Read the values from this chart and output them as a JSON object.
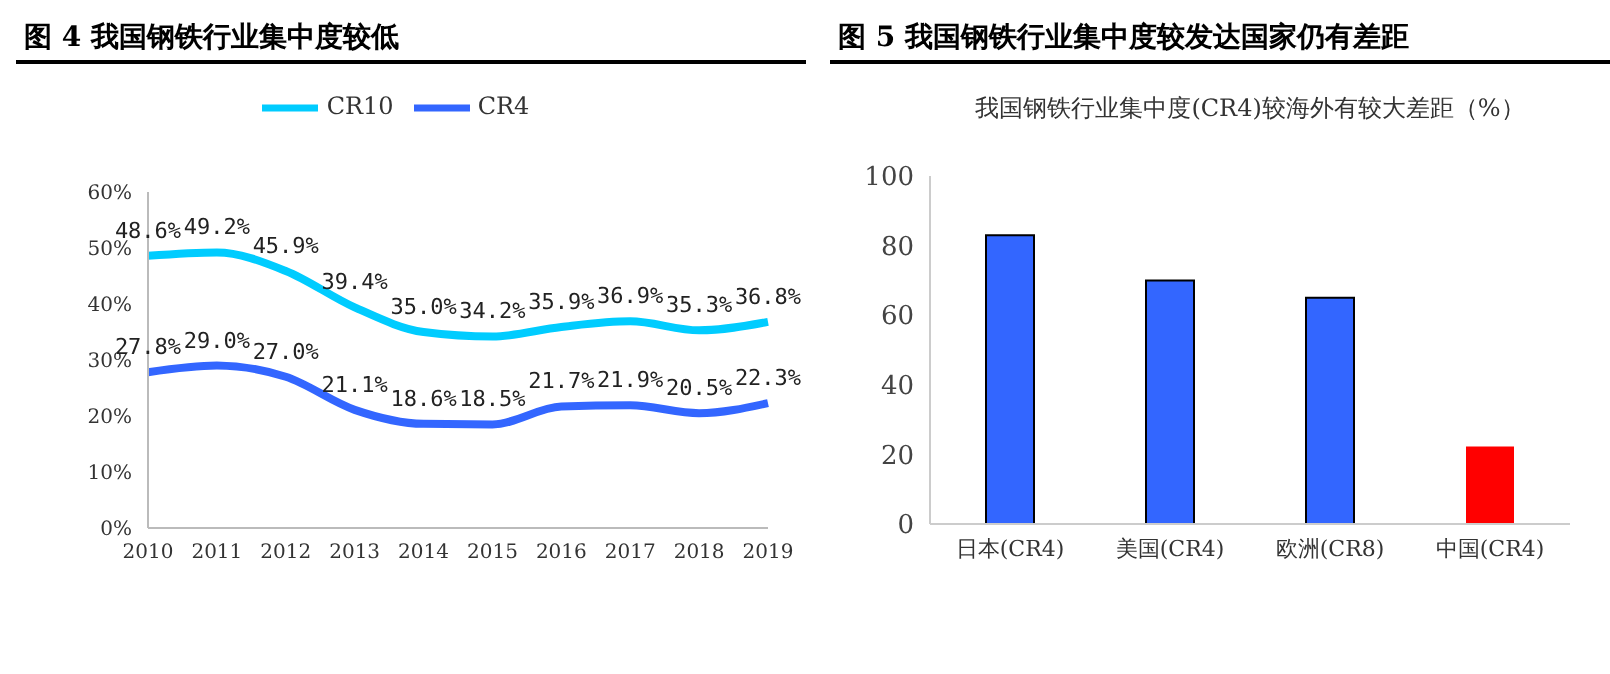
{
  "chart_data": [
    {
      "type": "line",
      "title": "图 4  我国钢铁行业集中度较低",
      "categories": [
        "2010",
        "2011",
        "2012",
        "2013",
        "2014",
        "2015",
        "2016",
        "2017",
        "2018",
        "2019"
      ],
      "series": [
        {
          "name": "CR4",
          "color": "#3366ff",
          "values": [
            27.8,
            29.0,
            27.0,
            21.1,
            18.6,
            18.5,
            21.7,
            21.9,
            20.5,
            22.3
          ],
          "value_labels": [
            "27.8%",
            "29.0%",
            "27.0%",
            "21.1%",
            "18.6%",
            "18.5%",
            "21.7%",
            "21.9%",
            "20.5%",
            "22.3%"
          ]
        },
        {
          "name": "CR10",
          "color": "#00ccff",
          "values": [
            48.6,
            49.2,
            45.9,
            39.4,
            35.0,
            34.2,
            35.9,
            36.9,
            35.3,
            36.8
          ],
          "value_labels": [
            "48.6%",
            "49.2%",
            "45.9%",
            "39.4%",
            "35.0%",
            "34.2%",
            "35.9%",
            "36.9%",
            "35.3%",
            "36.8%"
          ]
        }
      ],
      "ylim": [
        0,
        60
      ],
      "yticks": [
        {
          "value": 0,
          "label": "0%"
        },
        {
          "value": 10,
          "label": "10%"
        },
        {
          "value": 20,
          "label": "20%"
        },
        {
          "value": 30,
          "label": "30%"
        },
        {
          "value": 40,
          "label": "40%"
        },
        {
          "value": 50,
          "label": "50%"
        },
        {
          "value": 60,
          "label": "60%"
        }
      ],
      "legend": "top",
      "grid": false,
      "marker": "none",
      "line_style": "solid"
    },
    {
      "type": "bar",
      "title": "图 5  我国钢铁行业集中度较发达国家仍有差距",
      "subtitle": "我国钢铁行业集中度(CR4)较海外有较大差距（%）",
      "categories": [
        "日本(CR4)",
        "美国(CR4)",
        "欧洲(CR8)",
        "中国(CR4)"
      ],
      "values": [
        83,
        70,
        65,
        22.3
      ],
      "colors": [
        "#3366ff",
        "#3366ff",
        "#3366ff",
        "#ff0000"
      ],
      "ylim": [
        0,
        100
      ],
      "yticks": [
        0,
        20,
        40,
        60,
        80,
        100
      ],
      "grid": false,
      "legend": false
    }
  ]
}
